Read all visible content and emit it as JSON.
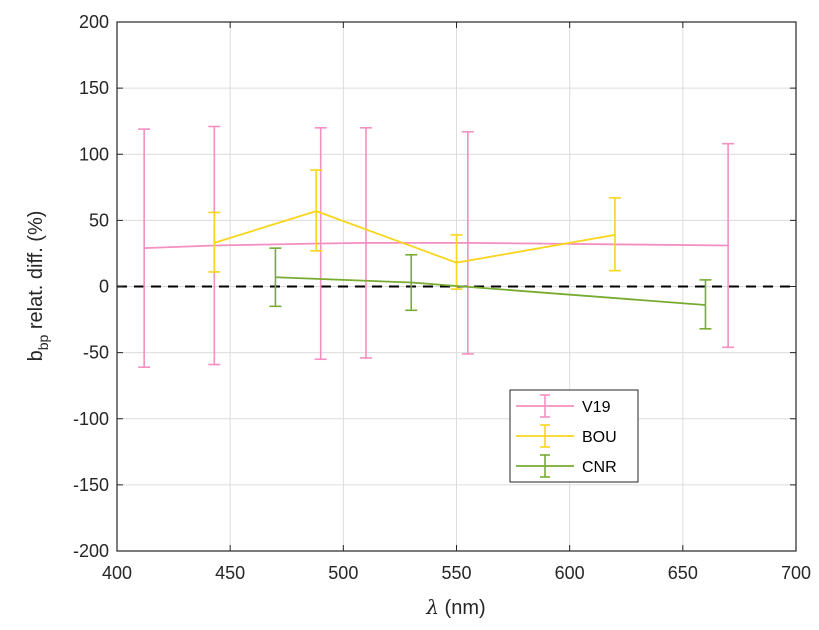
{
  "chart_data": {
    "type": "line",
    "xlabel": "λ (nm)",
    "ylabel": "b_bp relat. diff. (%)",
    "ylabel_parts": {
      "main": "b",
      "sub": "bp",
      "rest": " relat. diff. (%)"
    },
    "xlabel_parts": {
      "symbol": "λ",
      "rest": " (nm)"
    },
    "xlim": [
      400,
      700
    ],
    "ylim": [
      -200,
      200
    ],
    "xticks": [
      400,
      450,
      500,
      550,
      600,
      650,
      700
    ],
    "yticks": [
      -200,
      -150,
      -100,
      -50,
      0,
      50,
      100,
      150,
      200
    ],
    "xtick_labels": [
      "400",
      "450",
      "500",
      "550",
      "600",
      "650",
      "700"
    ],
    "ytick_labels": [
      "-200",
      "-150",
      "-100",
      "-50",
      "0",
      "50",
      "100",
      "150",
      "200"
    ],
    "grid": true,
    "reference_line": {
      "y": 0,
      "style": "dashed",
      "color": "#000000"
    },
    "legend_position": "lower-center",
    "series": [
      {
        "name": "V19",
        "color": "#F48FC1",
        "x": [
          412,
          443,
          490,
          510,
          555,
          670
        ],
        "y": [
          29,
          31,
          32.5,
          33,
          33,
          31
        ],
        "upper": [
          119,
          121,
          120,
          120,
          117,
          108
        ],
        "lower": [
          -61,
          -59,
          -55,
          -54,
          -51,
          -46
        ]
      },
      {
        "name": "BOU",
        "color": "#F9D51C",
        "x": [
          443,
          488,
          550,
          620
        ],
        "y": [
          33,
          57,
          18,
          39
        ],
        "upper": [
          56,
          88,
          39,
          67
        ],
        "lower": [
          11,
          27,
          -2,
          12
        ]
      },
      {
        "name": "CNR",
        "color": "#77AC30",
        "x": [
          470,
          530,
          660
        ],
        "y": [
          7,
          3,
          -14
        ],
        "upper": [
          29,
          24,
          5
        ],
        "lower": [
          -15,
          -18,
          -32
        ]
      }
    ]
  }
}
